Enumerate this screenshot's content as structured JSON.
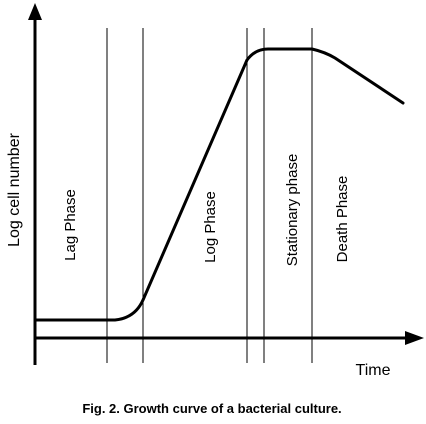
{
  "figure": {
    "caption": "Fig. 2. Growth curve of a bacterial culture.",
    "y_axis_label": "Log cell number",
    "x_axis_label": "Time",
    "phases": [
      {
        "label": "Lag Phase"
      },
      {
        "label": "Log Phase"
      },
      {
        "label": "Stationary phase"
      },
      {
        "label": "Death Phase"
      }
    ]
  },
  "colors": {
    "ink": "#000000",
    "background": "#ffffff"
  }
}
